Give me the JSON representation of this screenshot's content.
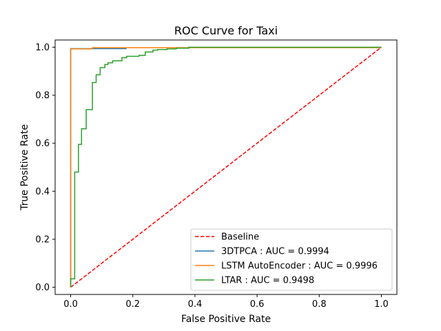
{
  "chart_data": {
    "type": "line",
    "title": "ROC Curve for Taxi",
    "xlabel": "False Positive Rate",
    "ylabel": "True Positive Rate",
    "xlim": [
      -0.05,
      1.05
    ],
    "ylim": [
      -0.03,
      1.03
    ],
    "x_ticks": [
      0.0,
      0.2,
      0.4,
      0.6,
      0.8,
      1.0
    ],
    "y_ticks": [
      0.0,
      0.2,
      0.4,
      0.6,
      0.8,
      1.0
    ],
    "x_tick_labels": [
      "0.0",
      "0.2",
      "0.4",
      "0.6",
      "0.8",
      "1.0"
    ],
    "y_tick_labels": [
      "0.0",
      "0.2",
      "0.4",
      "0.6",
      "0.8",
      "1.0"
    ],
    "grid": false,
    "legend_position": "lower-right",
    "series": [
      {
        "name": "Baseline",
        "color": "#ff0000",
        "style": "dashed",
        "x": [
          0.0,
          1.0
        ],
        "y": [
          0.0,
          1.0
        ]
      },
      {
        "name": "3DTPCA : AUC = 0.9994",
        "color": "#1f77b4",
        "style": "solid",
        "x": [
          0.0,
          0.0,
          0.18
        ],
        "y": [
          0.0,
          0.994,
          0.994
        ]
      },
      {
        "name": "LSTM AutoEncoder : AUC = 0.9996",
        "color": "#ff7f0e",
        "style": "solid",
        "x": [
          0.0,
          0.0,
          0.07,
          0.07,
          1.0
        ],
        "y": [
          0.0,
          0.993,
          0.993,
          0.998,
          0.998
        ]
      },
      {
        "name": "LTAR : AUC = 0.9498",
        "color": "#2ca02c",
        "style": "solid",
        "x": [
          0.0,
          0.0,
          0.013,
          0.013,
          0.025,
          0.025,
          0.035,
          0.035,
          0.05,
          0.05,
          0.07,
          0.07,
          0.082,
          0.082,
          0.095,
          0.095,
          0.11,
          0.11,
          0.12,
          0.12,
          0.135,
          0.135,
          0.165,
          0.165,
          0.18,
          0.18,
          0.22,
          0.22,
          0.24,
          0.24,
          0.265,
          0.265,
          0.28,
          0.28,
          0.31,
          0.31,
          0.34,
          0.34,
          0.38,
          0.38,
          1.0
        ],
        "y": [
          0.0,
          0.035,
          0.035,
          0.48,
          0.48,
          0.595,
          0.595,
          0.66,
          0.66,
          0.74,
          0.74,
          0.853,
          0.853,
          0.885,
          0.885,
          0.915,
          0.915,
          0.928,
          0.928,
          0.935,
          0.935,
          0.943,
          0.943,
          0.956,
          0.956,
          0.962,
          0.962,
          0.966,
          0.966,
          0.98,
          0.98,
          0.988,
          0.988,
          0.99,
          0.99,
          0.993,
          0.993,
          0.996,
          0.996,
          1.0,
          1.0
        ]
      }
    ]
  }
}
